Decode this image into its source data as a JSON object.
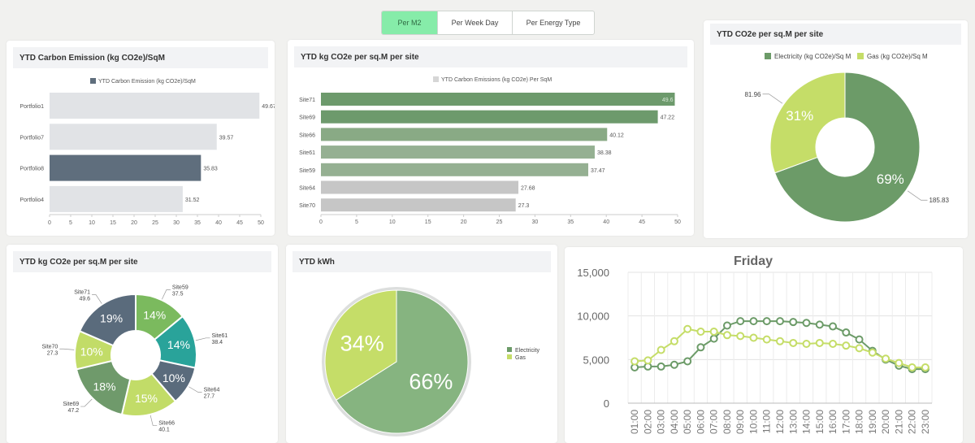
{
  "tabs": [
    "Per M2",
    "Per Week Day",
    "Per Energy Type"
  ],
  "colors": {
    "accent": "#86eca9",
    "highlight_bar": "#5f6e7d",
    "muted_bar": "#e1e3e6",
    "electricity": "#6c9b68",
    "gas": "#c5dd68"
  },
  "cards": {
    "portfolio": {
      "title": "YTD Carbon Emission (kg CO2e)/SqM"
    },
    "sites_bar": {
      "title": "YTD kg CO2e per sq.M per site"
    },
    "co2_donut": {
      "title": "YTD CO2e per sq.M per site"
    },
    "sites_donut": {
      "title": "YTD kg CO2e per sq.M per site"
    },
    "kwh_pie": {
      "title": "YTD kWh"
    },
    "friday_line": {
      "title": ""
    }
  },
  "chart_data": [
    {
      "type": "bar",
      "orientation": "horizontal",
      "categories": [
        "Portfolio1",
        "Portfolio7",
        "Portfolio8",
        "Portfolio4"
      ],
      "values": [
        49.67,
        39.57,
        35.83,
        31.52
      ],
      "data_labels": [
        "49.67",
        "39.57",
        "35.83",
        "31.52"
      ],
      "highlight": "Portfolio8",
      "legend": [
        "YTD Carbon Emission (kg CO2e)/SqM"
      ],
      "legend_position": "top",
      "xlim": [
        0,
        50
      ],
      "xticks": [
        0,
        5,
        10,
        15,
        20,
        25,
        30,
        35,
        40,
        45,
        50
      ]
    },
    {
      "type": "bar",
      "orientation": "horizontal",
      "categories": [
        "Site71",
        "Site69",
        "Site66",
        "Site61",
        "Site59",
        "Site64",
        "Site70"
      ],
      "values": [
        49.6,
        47.22,
        40.12,
        38.38,
        37.47,
        27.68,
        27.3
      ],
      "data_labels": [
        "49.6",
        "47.22",
        "40.12",
        "38.38",
        "37.47",
        "27.68",
        "27.3"
      ],
      "bar_colors": [
        "#6d9a6c",
        "#6d9a6c",
        "#89aa85",
        "#95b092",
        "#95b092",
        "#c6c6c6",
        "#c6c6c6"
      ],
      "legend": [
        "YTD Carbon Emissions (kg CO2e) Per SqM"
      ],
      "legend_position": "top",
      "xlim": [
        0,
        50
      ],
      "xticks": [
        0,
        5,
        10,
        15,
        20,
        25,
        30,
        35,
        40,
        45,
        50
      ]
    },
    {
      "type": "pie",
      "donut": true,
      "legend": [
        "Electricity (kg CO2e)/Sq M",
        "Gas (kg CO2e)/Sq M"
      ],
      "legend_position": "top",
      "slices": [
        {
          "name": "Electricity (kg CO2e)/Sq M",
          "value": 185.83,
          "percent": "69%",
          "color": "#6c9b68"
        },
        {
          "name": "Gas (kg CO2e)/Sq M",
          "value": 81.96,
          "percent": "31%",
          "color": "#c5dd68"
        }
      ],
      "value_labels": [
        "185.83",
        "81.96"
      ]
    },
    {
      "type": "pie",
      "donut": true,
      "slices": [
        {
          "name": "Site59",
          "value": 37.5,
          "label": "37.5",
          "percent": "14%",
          "color": "#7bba5e"
        },
        {
          "name": "Site61",
          "value": 38.4,
          "label": "38.4",
          "percent": "14%",
          "color": "#29a39a"
        },
        {
          "name": "Site64",
          "value": 27.7,
          "label": "27.7",
          "percent": "10%",
          "color": "#5a6b7c"
        },
        {
          "name": "Site66",
          "value": 40.1,
          "label": "40.1",
          "percent": "15%",
          "color": "#c2dc68"
        },
        {
          "name": "Site69",
          "value": 47.2,
          "label": "47.2",
          "percent": "18%",
          "color": "#6f9a6b"
        },
        {
          "name": "Site70",
          "value": 27.3,
          "label": "27.3",
          "percent": "10%",
          "color": "#c2dc68"
        },
        {
          "name": "Site71",
          "value": 49.6,
          "label": "49.6",
          "percent": "19%",
          "color": "#5a6b7c"
        }
      ]
    },
    {
      "type": "pie",
      "legend": [
        "Electricity",
        "Gas"
      ],
      "legend_position": "right",
      "slices": [
        {
          "name": "Electricity",
          "percent": "66%",
          "value": 66,
          "color": "#86b480"
        },
        {
          "name": "Gas",
          "percent": "34%",
          "value": 34,
          "color": "#c5dd68"
        }
      ]
    },
    {
      "type": "line",
      "title": "Friday",
      "x": [
        "01:00",
        "02:00",
        "03:00",
        "04:00",
        "05:00",
        "06:00",
        "07:00",
        "08:00",
        "09:00",
        "10:00",
        "11:00",
        "12:00",
        "13:00",
        "14:00",
        "15:00",
        "16:00",
        "17:00",
        "18:00",
        "19:00",
        "20:00",
        "21:00",
        "22:00",
        "23:00"
      ],
      "ylim": [
        0,
        15000
      ],
      "yticks": [
        "0",
        "5,000",
        "10,000",
        "15,000"
      ],
      "ytick_values": [
        0,
        5000,
        10000,
        15000
      ],
      "grid": true,
      "series": [
        {
          "color": "#6c9b68",
          "values": [
            4100,
            4200,
            4200,
            4400,
            4800,
            6400,
            7400,
            8900,
            9400,
            9400,
            9400,
            9400,
            9300,
            9200,
            9000,
            8800,
            8100,
            7300,
            6000,
            5000,
            4300,
            3900,
            3900
          ]
        },
        {
          "color": "#c5dd68",
          "values": [
            4800,
            4900,
            6100,
            7100,
            8500,
            8200,
            8200,
            7800,
            7700,
            7500,
            7300,
            7100,
            6900,
            6800,
            6900,
            6800,
            6600,
            6300,
            5800,
            5100,
            4600,
            4100,
            4100
          ]
        }
      ]
    }
  ]
}
